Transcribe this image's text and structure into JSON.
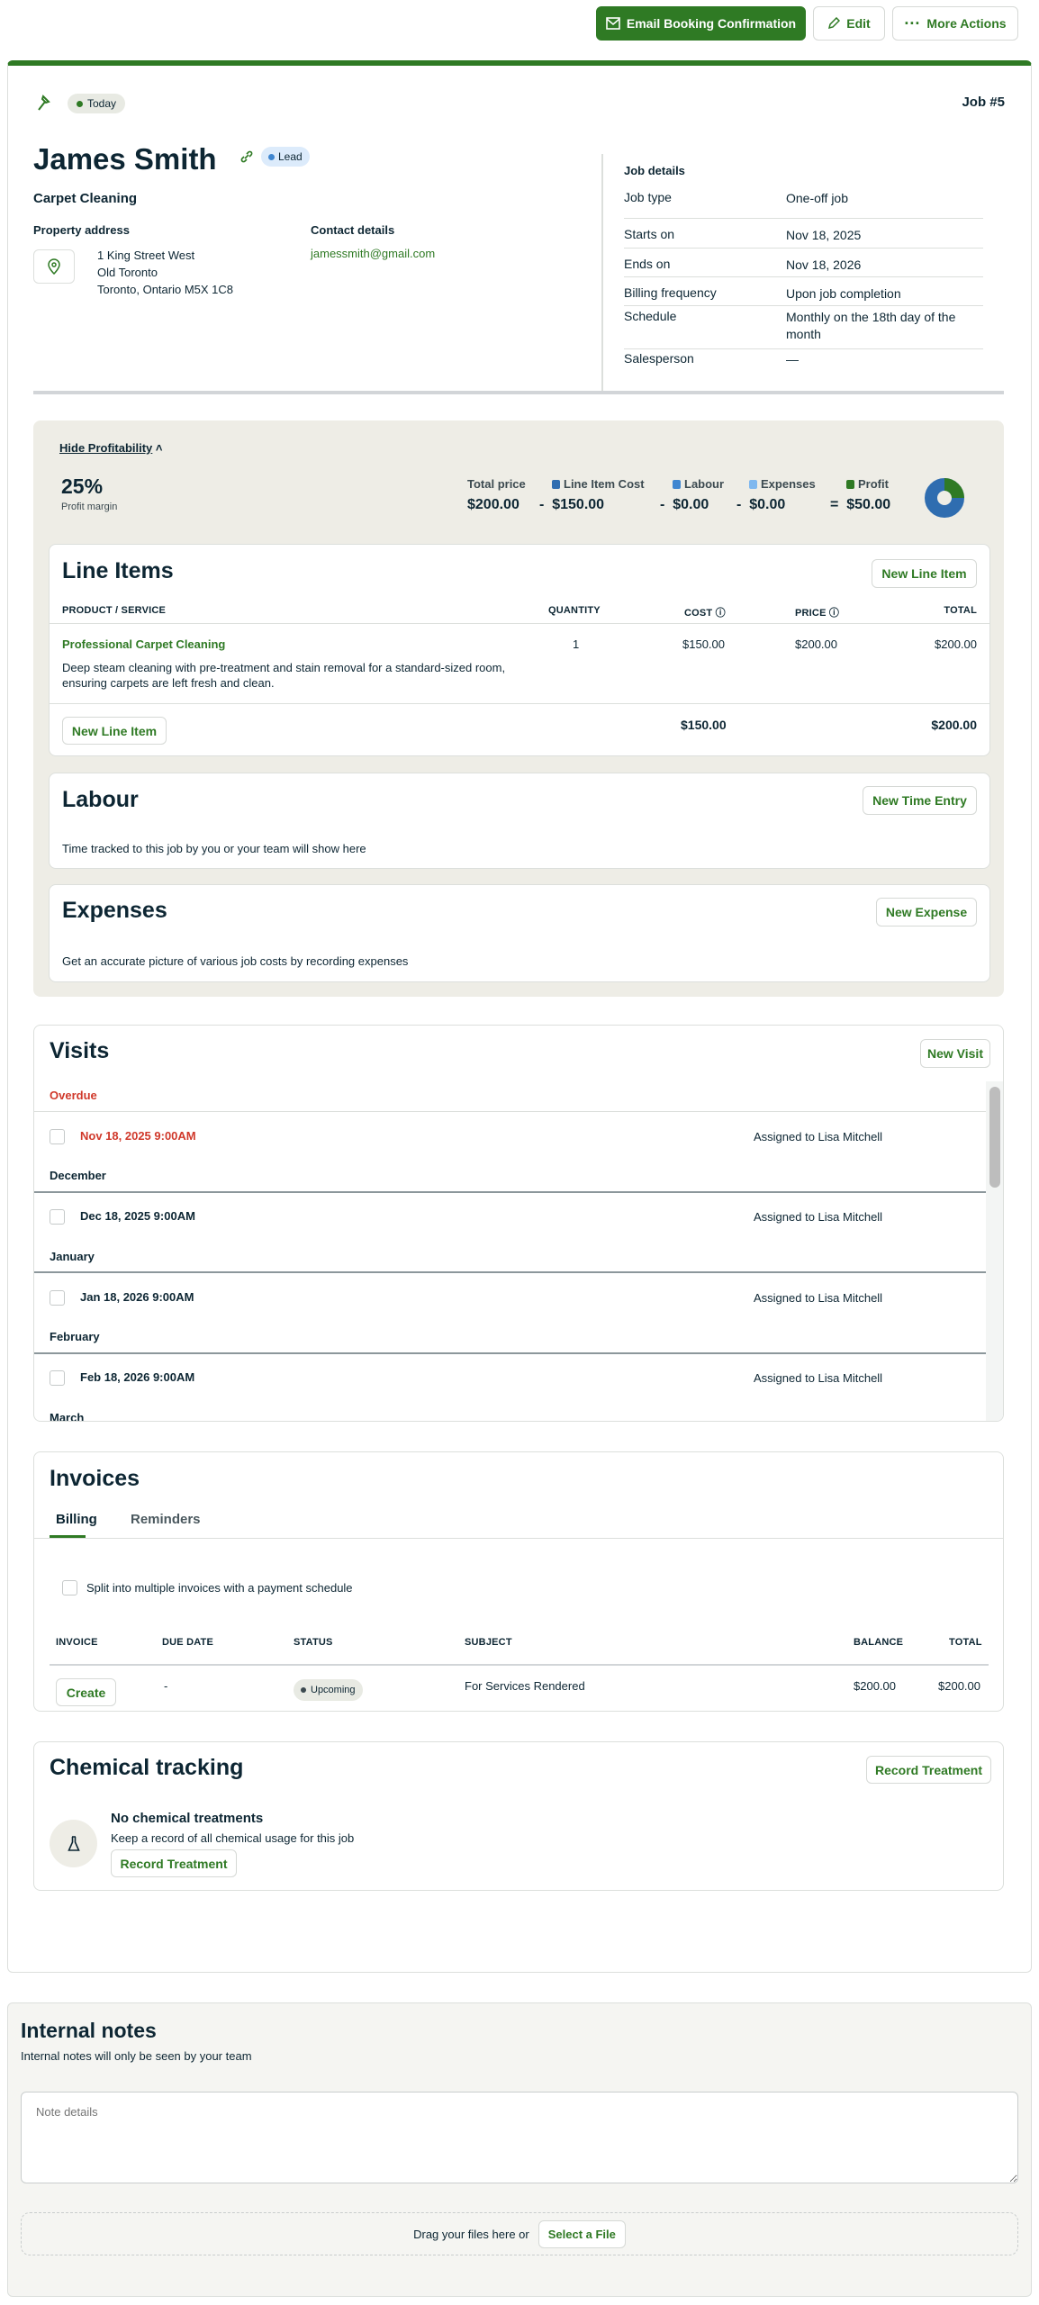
{
  "toolbar": {
    "email": "Email Booking Confirmation",
    "edit": "Edit",
    "more": "More Actions"
  },
  "job": {
    "status": "Today",
    "number": "Job #5",
    "client": "James Smith",
    "client_badge": "Lead",
    "title": "Carpet Cleaning",
    "property_label": "Property address",
    "address": [
      "1 King Street West",
      "Old Toronto",
      "Toronto, Ontario M5X 1C8"
    ],
    "contact_label": "Contact details",
    "email": "jamessmith@gmail.com"
  },
  "details": {
    "title": "Job details",
    "rows": [
      {
        "label": "Job type",
        "value": "One-off job"
      },
      {
        "label": "Starts on",
        "value": "Nov 18, 2025"
      },
      {
        "label": "Ends on",
        "value": "Nov 18, 2026"
      },
      {
        "label": "Billing frequency",
        "value": "Upon job completion"
      },
      {
        "label": "Schedule",
        "value": "Monthly on the 18th day of the month"
      },
      {
        "label": "Salesperson",
        "value": "—"
      }
    ]
  },
  "profit": {
    "toggle": "Hide Profitability",
    "margin": "25%",
    "margin_label": "Profit margin",
    "total_label": "Total price",
    "total": "$200.00",
    "items": [
      {
        "label": "Line Item Cost",
        "op": "-",
        "value": "$150.00",
        "color": "#2f6db0"
      },
      {
        "label": "Labour",
        "op": "-",
        "value": "$0.00",
        "color": "#3f86d0"
      },
      {
        "label": "Expenses",
        "op": "-",
        "value": "$0.00",
        "color": "#7fb8ef"
      },
      {
        "label": "Profit",
        "op": "=",
        "value": "$50.00",
        "color": "#2f7a24"
      }
    ],
    "chart": {
      "cost_fraction": 0.75,
      "profit_fraction": 0.25
    }
  },
  "line_items": {
    "title": "Line Items",
    "new": "New Line Item",
    "headers": [
      "PRODUCT / SERVICE",
      "QUANTITY",
      "COST",
      "PRICE",
      "TOTAL"
    ],
    "items": [
      {
        "name": "Professional Carpet Cleaning",
        "desc": "Deep steam cleaning with pre-treatment and stain removal for a standard-sized room, ensuring carpets are left fresh and clean.",
        "qty": "1",
        "cost": "$150.00",
        "price": "$200.00",
        "total": "$200.00"
      }
    ],
    "cost_total": "$150.00",
    "total": "$200.00"
  },
  "labour": {
    "title": "Labour",
    "new": "New Time Entry",
    "empty": "Time tracked to this job by you or your team will show here"
  },
  "expenses": {
    "title": "Expenses",
    "new": "New Expense",
    "empty": "Get an accurate picture of various job costs by recording expenses"
  },
  "visits": {
    "title": "Visits",
    "new": "New Visit",
    "groups": [
      {
        "label": "Overdue",
        "date": "Nov 18, 2025 9:00AM",
        "assigned": "Assigned to Lisa Mitchell"
      },
      {
        "label": "December",
        "date": "Dec 18, 2025 9:00AM",
        "assigned": "Assigned to Lisa Mitchell"
      },
      {
        "label": "January",
        "date": "Jan 18, 2026 9:00AM",
        "assigned": "Assigned to Lisa Mitchell"
      },
      {
        "label": "February",
        "date": "Feb 18, 2026 9:00AM",
        "assigned": "Assigned to Lisa Mitchell"
      },
      {
        "label": "March"
      }
    ]
  },
  "invoices": {
    "title": "Invoices",
    "tabs": [
      "Billing",
      "Reminders"
    ],
    "split": "Split into multiple invoices with a payment schedule",
    "headers": [
      "INVOICE",
      "DUE DATE",
      "STATUS",
      "SUBJECT",
      "BALANCE",
      "TOTAL"
    ],
    "row": {
      "create": "Create",
      "due": "-",
      "status": "Upcoming",
      "subject": "For Services Rendered",
      "balance": "$200.00",
      "total": "$200.00"
    }
  },
  "chemical": {
    "title": "Chemical tracking",
    "record": "Record Treatment",
    "empty_title": "No chemical treatments",
    "empty_desc": "Keep a record of all chemical usage for this job"
  },
  "notes": {
    "title": "Internal notes",
    "subtitle": "Internal notes will only be seen by your team",
    "placeholder": "Note details",
    "drop": "Drag your files here or",
    "select": "Select a File"
  },
  "colors": {
    "accent": "#2f7a24",
    "overdue": "#d0392b",
    "panel": "#eeede6"
  }
}
